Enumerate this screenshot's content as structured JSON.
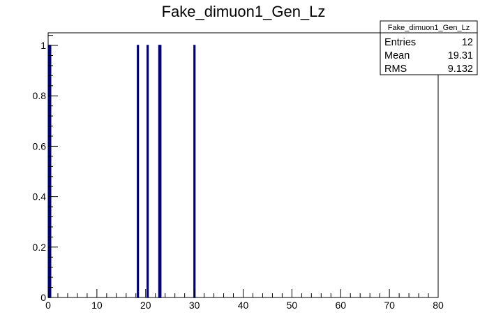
{
  "chart_data": {
    "type": "bar",
    "title": "Fake_dimuon1_Gen_Lz",
    "xlabel": "",
    "ylabel": "",
    "xlim": [
      0,
      80
    ],
    "ylim": [
      0,
      1.05
    ],
    "grid": false,
    "x_ticks": [
      "0",
      "10",
      "20",
      "30",
      "40",
      "50",
      "60",
      "70",
      "80"
    ],
    "y_ticks": [
      "0",
      "0.2",
      "0.4",
      "0.6",
      "0.8",
      "1"
    ],
    "bin_width": 0.2,
    "bins": [
      {
        "x": 0.2,
        "value": 1
      },
      {
        "x": 0.4,
        "value": 1
      },
      {
        "x": 18.4,
        "value": 1
      },
      {
        "x": 20.4,
        "value": 1
      },
      {
        "x": 22.8,
        "value": 1
      },
      {
        "x": 23.0,
        "value": 1
      },
      {
        "x": 30.0,
        "value": 1
      }
    ],
    "line_color": "#000080",
    "legend_position": "top-right",
    "stats_box": {
      "title": "Fake_dimuon1_Gen_Lz",
      "rows": [
        {
          "label": "Entries",
          "value": "12"
        },
        {
          "label": "Mean",
          "value": "19.31"
        },
        {
          "label": "RMS",
          "value": "9.132"
        }
      ]
    }
  }
}
